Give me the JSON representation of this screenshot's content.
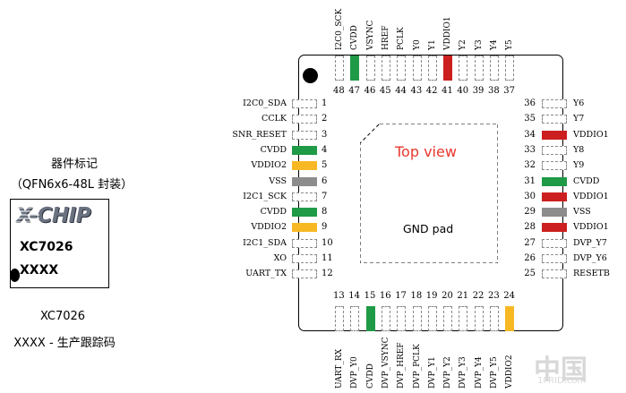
{
  "marking": {
    "title": "器件标记",
    "package": "（QFN6x6-48L 封装）",
    "logo": "X-CHIP",
    "model": "XC7026",
    "trace": "XXXX",
    "caption_model": "XC7026",
    "caption_trace": "XXXX - 生产跟踪码"
  },
  "package": {
    "top_view": "Top view",
    "gnd_pad": "GND pad"
  },
  "colors": {
    "green": "#1f9a46",
    "orange": "#f7b824",
    "gray": "#8c8c8c",
    "red": "#cc1f1f"
  },
  "pins_left": [
    {
      "num": "1",
      "name": "I2C0_SDA",
      "color": ""
    },
    {
      "num": "2",
      "name": "CCLK",
      "color": ""
    },
    {
      "num": "3",
      "name": "SNR_RESET",
      "color": ""
    },
    {
      "num": "4",
      "name": "CVDD",
      "color": "green"
    },
    {
      "num": "5",
      "name": "VDDIO2",
      "color": "orange"
    },
    {
      "num": "6",
      "name": "VSS",
      "color": "gray"
    },
    {
      "num": "7",
      "name": "I2C1_SCK",
      "color": ""
    },
    {
      "num": "8",
      "name": "CVDD",
      "color": "green"
    },
    {
      "num": "9",
      "name": "VDDIO2",
      "color": "orange"
    },
    {
      "num": "10",
      "name": "I2C1_SDA",
      "color": ""
    },
    {
      "num": "11",
      "name": "XO",
      "color": ""
    },
    {
      "num": "12",
      "name": "UART_TX",
      "color": ""
    }
  ],
  "pins_right": [
    {
      "num": "36",
      "name": "Y6",
      "color": ""
    },
    {
      "num": "35",
      "name": "Y7",
      "color": ""
    },
    {
      "num": "34",
      "name": "VDDIO1",
      "color": "red"
    },
    {
      "num": "33",
      "name": "Y8",
      "color": ""
    },
    {
      "num": "32",
      "name": "Y9",
      "color": ""
    },
    {
      "num": "31",
      "name": "CVDD",
      "color": "green"
    },
    {
      "num": "30",
      "name": "VDDIO1",
      "color": "red"
    },
    {
      "num": "29",
      "name": "VSS",
      "color": "gray"
    },
    {
      "num": "28",
      "name": "VDDIO1",
      "color": "red"
    },
    {
      "num": "27",
      "name": "DVP_Y7",
      "color": ""
    },
    {
      "num": "26",
      "name": "DVP_Y6",
      "color": ""
    },
    {
      "num": "25",
      "name": "RESETB",
      "color": ""
    }
  ],
  "pins_top": [
    {
      "num": "48",
      "name": "I2C0_SCK",
      "color": ""
    },
    {
      "num": "47",
      "name": "CVDD",
      "color": "green"
    },
    {
      "num": "46",
      "name": "VSYNC",
      "color": ""
    },
    {
      "num": "45",
      "name": "HREF",
      "color": ""
    },
    {
      "num": "44",
      "name": "PCLK",
      "color": ""
    },
    {
      "num": "43",
      "name": "Y0",
      "color": ""
    },
    {
      "num": "42",
      "name": "Y1",
      "color": ""
    },
    {
      "num": "41",
      "name": "VDDIO1",
      "color": "red"
    },
    {
      "num": "40",
      "name": "Y2",
      "color": ""
    },
    {
      "num": "39",
      "name": "Y3",
      "color": ""
    },
    {
      "num": "38",
      "name": "Y4",
      "color": ""
    },
    {
      "num": "37",
      "name": "Y5",
      "color": ""
    }
  ],
  "pins_bottom": [
    {
      "num": "13",
      "name": "UART_RX",
      "color": ""
    },
    {
      "num": "14",
      "name": "DVP_Y0",
      "color": ""
    },
    {
      "num": "15",
      "name": "CVDD",
      "color": "green"
    },
    {
      "num": "16",
      "name": "DVP_VSYNC",
      "color": ""
    },
    {
      "num": "17",
      "name": "DVP_HREF",
      "color": ""
    },
    {
      "num": "18",
      "name": "DVP_PCLK",
      "color": ""
    },
    {
      "num": "19",
      "name": "DVP_Y1",
      "color": ""
    },
    {
      "num": "20",
      "name": "DVP_Y2",
      "color": ""
    },
    {
      "num": "21",
      "name": "DVP_Y3",
      "color": ""
    },
    {
      "num": "22",
      "name": "DVP_Y4",
      "color": ""
    },
    {
      "num": "23",
      "name": "DVP_Y5",
      "color": ""
    },
    {
      "num": "24",
      "name": "VDDIO2",
      "color": "orange"
    }
  ],
  "watermark": {
    "main": "中国",
    "sub": "1FRID.com"
  }
}
